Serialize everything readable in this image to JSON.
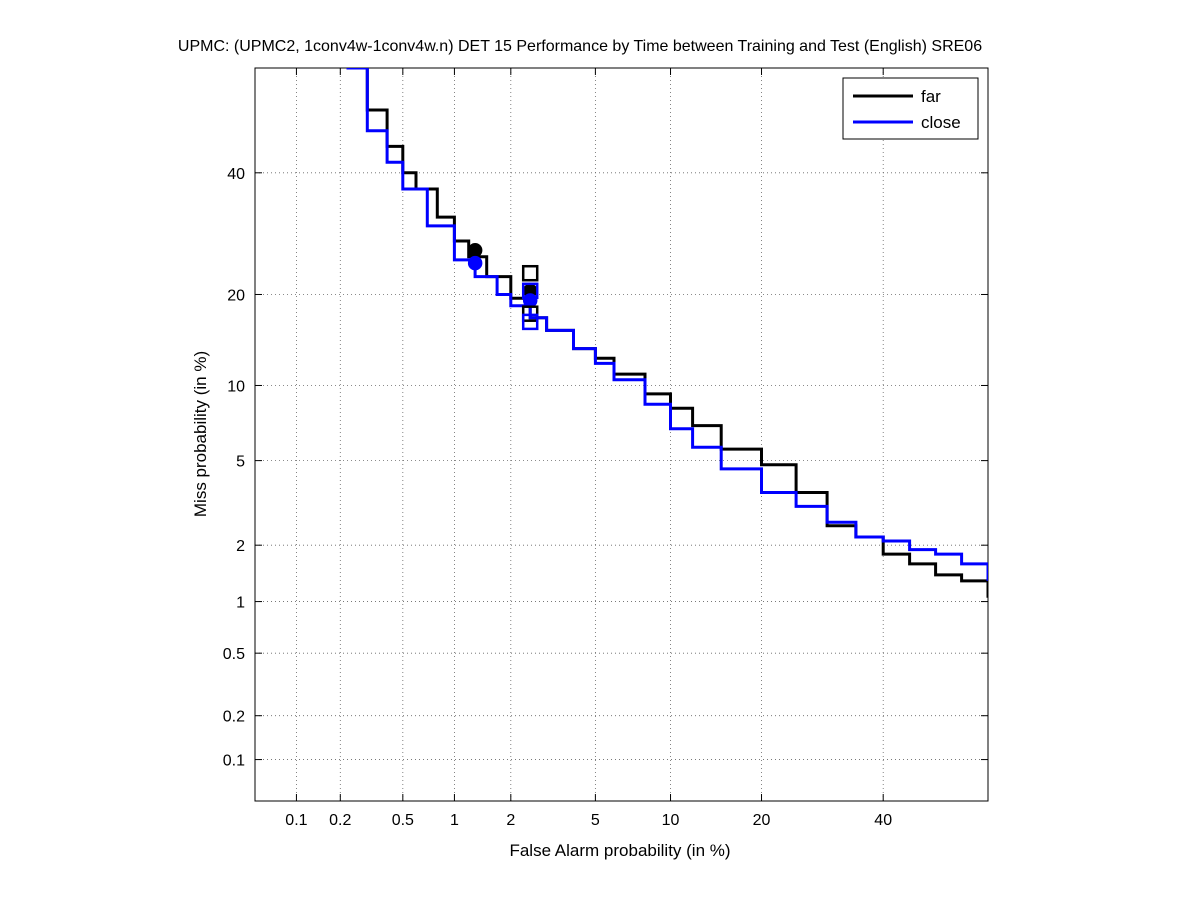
{
  "chart_data": {
    "type": "line",
    "title": "UPMC: (UPMC2, 1conv4w-1conv4w.n) DET 15 Performance by Time between Training and Test (English) SRE06",
    "xlabel": "False Alarm probability (in %)",
    "ylabel": "Miss probability (in %)",
    "x_scale": "normal-deviate (probit)",
    "y_scale": "normal-deviate (probit)",
    "xlim": [
      0.05,
      60
    ],
    "ylim": [
      0.05,
      60
    ],
    "x_ticks": [
      0.1,
      0.2,
      0.5,
      1,
      2,
      5,
      10,
      20,
      40
    ],
    "x_tick_labels": [
      "0.1",
      "0.2",
      "0.5",
      "1",
      "2",
      "5",
      "10",
      "20",
      "40"
    ],
    "y_ticks": [
      0.1,
      0.2,
      0.5,
      1,
      2,
      5,
      10,
      20,
      40
    ],
    "y_tick_labels": [
      "0.1",
      "0.2",
      "0.5",
      "1",
      "2",
      "5",
      "10",
      "20",
      "40"
    ],
    "grid": true,
    "legend_position": "top-right",
    "series": [
      {
        "name": "far",
        "color": "#000000",
        "x": [
          0.22,
          0.3,
          0.4,
          0.5,
          0.6,
          0.8,
          1.0,
          1.2,
          1.5,
          2.0,
          2.5,
          3.0,
          4.0,
          5.0,
          6.0,
          8.0,
          10.0,
          12.0,
          15.0,
          20.0,
          25.0,
          30.0,
          35.0,
          40.0,
          45.0,
          50.0,
          55.0,
          60.0
        ],
        "y": [
          60,
          52,
          45,
          40,
          37,
          32,
          28,
          25.5,
          22.5,
          19.5,
          17,
          15.5,
          13.5,
          12.5,
          11,
          9.3,
          8.2,
          7,
          5.6,
          4.8,
          3.6,
          2.5,
          2.2,
          1.8,
          1.6,
          1.4,
          1.3,
          1.05
        ]
      },
      {
        "name": "close",
        "color": "#0000ff",
        "x": [
          0.22,
          0.3,
          0.4,
          0.5,
          0.7,
          1.0,
          1.3,
          1.7,
          2.0,
          2.5,
          3.0,
          4.0,
          5.0,
          6.0,
          8.0,
          10.0,
          12.0,
          15.0,
          20.0,
          25.0,
          30.0,
          35.0,
          40.0,
          45.0,
          50.0,
          55.0,
          60.0
        ],
        "y": [
          60,
          48,
          42,
          37,
          30.5,
          25,
          22.5,
          20,
          18.5,
          17,
          15.5,
          13.5,
          12,
          10.5,
          8.5,
          6.8,
          5.7,
          4.6,
          3.6,
          3.1,
          2.6,
          2.2,
          2.1,
          1.9,
          1.8,
          1.6,
          1.3
        ]
      }
    ],
    "markers": [
      {
        "series": "far",
        "shape": "circle",
        "x": 1.3,
        "y": 26.5,
        "fill": true
      },
      {
        "series": "close",
        "shape": "circle",
        "x": 1.3,
        "y": 24.5,
        "fill": true
      },
      {
        "series": "far",
        "shape": "circle",
        "x": 2.5,
        "y": 20.5,
        "fill": true
      },
      {
        "series": "close",
        "shape": "circle",
        "x": 2.5,
        "y": 19.2,
        "fill": true
      },
      {
        "series": "far",
        "shape": "square",
        "x": 2.5,
        "y": 23,
        "fill": false
      },
      {
        "series": "far",
        "shape": "square",
        "x": 2.5,
        "y": 17.5,
        "fill": false
      },
      {
        "series": "close",
        "shape": "square",
        "x": 2.5,
        "y": 20.5,
        "fill": false
      },
      {
        "series": "close",
        "shape": "square",
        "x": 2.5,
        "y": 16.5,
        "fill": false
      }
    ]
  }
}
